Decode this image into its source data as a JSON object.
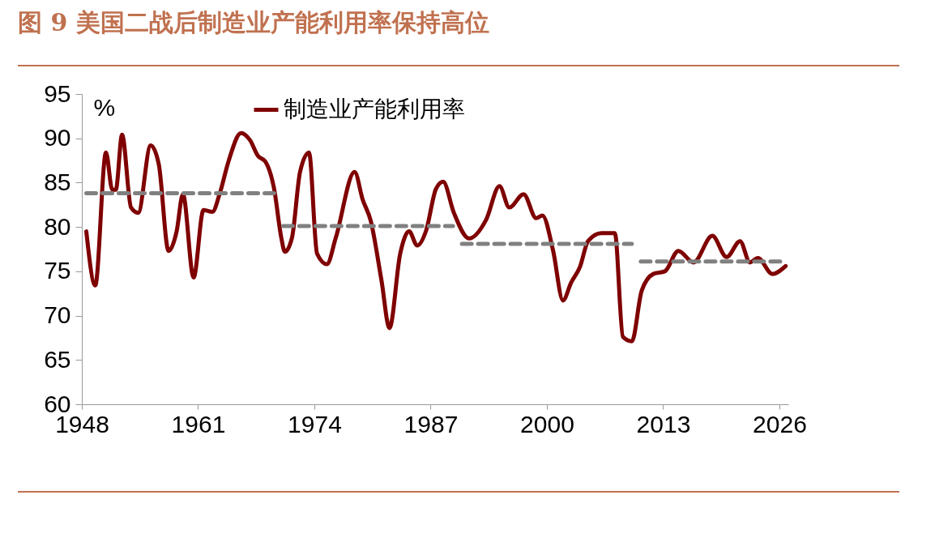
{
  "chart_data": {
    "type": "line",
    "title": "图 9 美国二战后制造业产能利用率保持高位",
    "ylabel": "%",
    "x": [
      1948.5,
      1949.5,
      1950.7,
      1951.4,
      1951.8,
      1952.5,
      1953.5,
      1954.3,
      1955.7,
      1956.6,
      1957.7,
      1958.6,
      1959.3,
      1960.5,
      1961.6,
      1962.6,
      1963.4,
      1964.4,
      1965.8,
      1966.8,
      1967.7,
      1968.5,
      1969.5,
      1970.3,
      1970.7,
      1971.5,
      1972.4,
      1973.4,
      1974.3,
      1975.4,
      1976.4,
      1978.5,
      1979.4,
      1980.3,
      1981.5,
      1982.4,
      1983.6,
      1984.6,
      1985.5,
      1986.5,
      1987.6,
      1988.4,
      1989.6,
      1991.3,
      1993.2,
      1994.7,
      1995.8,
      1997.4,
      1998.8,
      1999.5,
      2000.7,
      2001.8,
      2002.7,
      2003.7,
      2004.6,
      2006.1,
      2007.6,
      2008.5,
      2009.5,
      2010.6,
      2011.9,
      2013.2,
      2014.7,
      2016.4,
      2018.5,
      2020.1,
      2021.6,
      2022.7,
      2023.6,
      2025.2,
      2026.7
    ],
    "series": [
      {
        "name": "制造业产能利用率",
        "color": "#7f0000",
        "values": [
          79.5,
          73.4,
          88.4,
          84.2,
          84.2,
          90.4,
          82.2,
          81.6,
          89.2,
          87.1,
          77.3,
          79.5,
          83.7,
          74.3,
          81.9,
          81.7,
          83.7,
          87.4,
          90.6,
          89.8,
          88.0,
          87.4,
          84.3,
          78.8,
          77.2,
          78.8,
          86.2,
          88.4,
          77.0,
          75.8,
          78.8,
          86.2,
          83.1,
          80.7,
          74.0,
          68.6,
          77.0,
          79.5,
          77.9,
          79.6,
          84.3,
          85.1,
          81.6,
          78.7,
          80.8,
          84.6,
          82.2,
          83.7,
          81.0,
          81.3,
          77.3,
          71.7,
          73.7,
          75.5,
          78.4,
          79.3,
          79.3,
          67.6,
          67.1,
          72.8,
          74.7,
          75.0,
          77.3,
          76.0,
          79.0,
          76.6,
          78.4,
          76.0,
          76.5,
          74.7,
          75.6
        ]
      },
      {
        "color": "#808080",
        "line_style": "dashed",
        "x": [
          1948.5,
          1969.5
        ],
        "values": [
          83.8,
          83.8
        ]
      },
      {
        "color": "#808080",
        "line_style": "dashed",
        "x": [
          1970.5,
          1989.5
        ],
        "values": [
          80.1,
          80.1
        ]
      },
      {
        "color": "#808080",
        "line_style": "dashed",
        "x": [
          1990.5,
          2009.5
        ],
        "values": [
          78.1,
          78.1
        ]
      },
      {
        "color": "#808080",
        "line_style": "dashed",
        "x": [
          2010.5,
          2026.5
        ],
        "values": [
          76.1,
          76.1
        ]
      }
    ],
    "xlim": [
      1948,
      2027
    ],
    "xticks": [
      1948,
      1961,
      1974,
      1987,
      2000,
      2013,
      2026
    ],
    "ylim": [
      60,
      95
    ],
    "yticks": [
      60,
      65,
      70,
      75,
      80,
      85,
      90,
      95
    ],
    "legend": "top",
    "line_style": "solid",
    "grid": false
  }
}
